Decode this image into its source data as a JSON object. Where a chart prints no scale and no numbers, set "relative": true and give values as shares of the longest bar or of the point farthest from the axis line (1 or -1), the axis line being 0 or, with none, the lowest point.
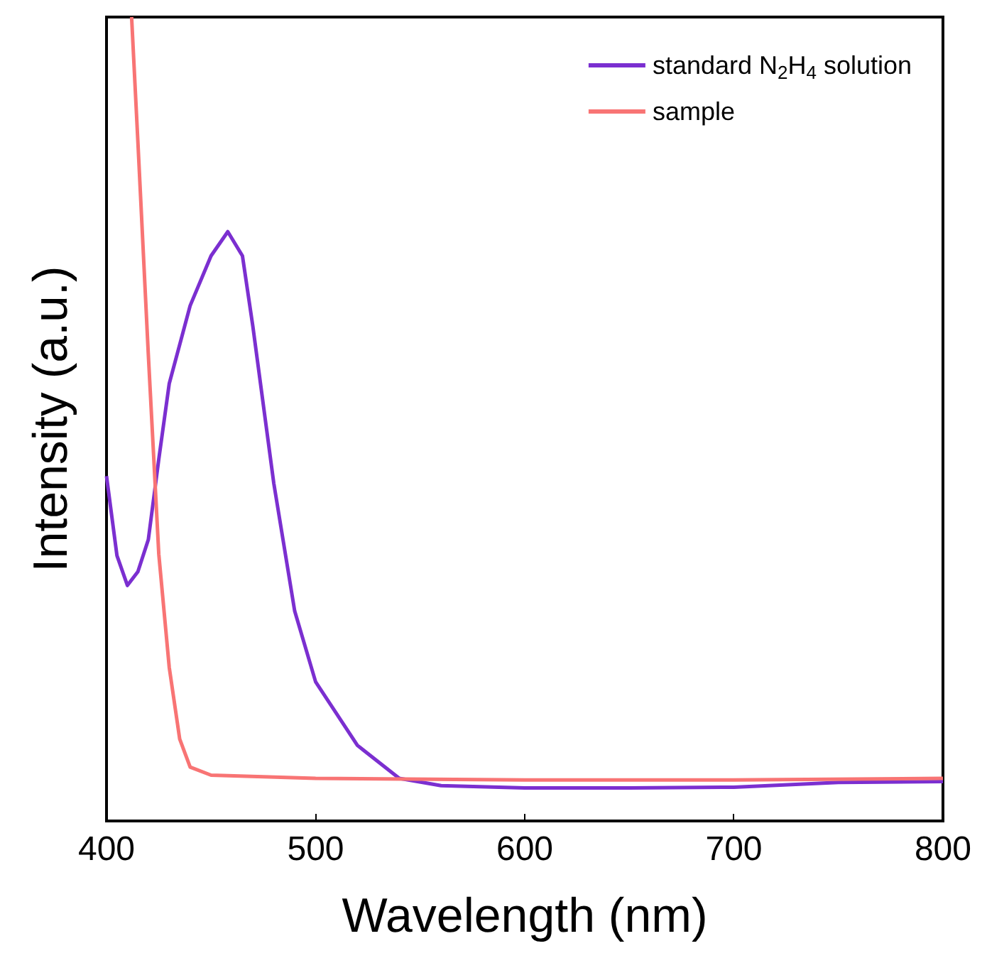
{
  "chart_data": {
    "type": "line",
    "xlabel": "Wavelength (nm)",
    "ylabel": "Intensity (a.u.)",
    "relative": true,
    "xlim": [
      400,
      800
    ],
    "xticks": [
      400,
      500,
      600,
      700,
      800
    ],
    "legend": "top right",
    "grid": false,
    "marker": "none",
    "line_style": "solid",
    "series": [
      {
        "name": "standard N$_{2}$H$_{4}$ solution",
        "color": "#7b2fd0",
        "x": [
          400,
          405,
          410,
          415,
          420,
          425,
          430,
          440,
          450,
          458,
          465,
          470,
          480,
          490,
          500,
          520,
          540,
          560,
          600,
          650,
          700,
          750,
          800
        ],
        "values": [
          0.429,
          0.33,
          0.293,
          0.31,
          0.35,
          0.45,
          0.544,
          0.641,
          0.703,
          0.733,
          0.703,
          0.615,
          0.42,
          0.261,
          0.173,
          0.094,
          0.053,
          0.044,
          0.041,
          0.041,
          0.042,
          0.048,
          0.049
        ]
      },
      {
        "name": "sample",
        "color": "#f87474",
        "x": [
          412,
          415,
          420,
          425,
          430,
          435,
          440,
          450,
          500,
          600,
          700,
          800
        ],
        "values": [
          1.0,
          0.845,
          0.58,
          0.332,
          0.191,
          0.102,
          0.067,
          0.057,
          0.053,
          0.051,
          0.051,
          0.053
        ]
      }
    ]
  }
}
